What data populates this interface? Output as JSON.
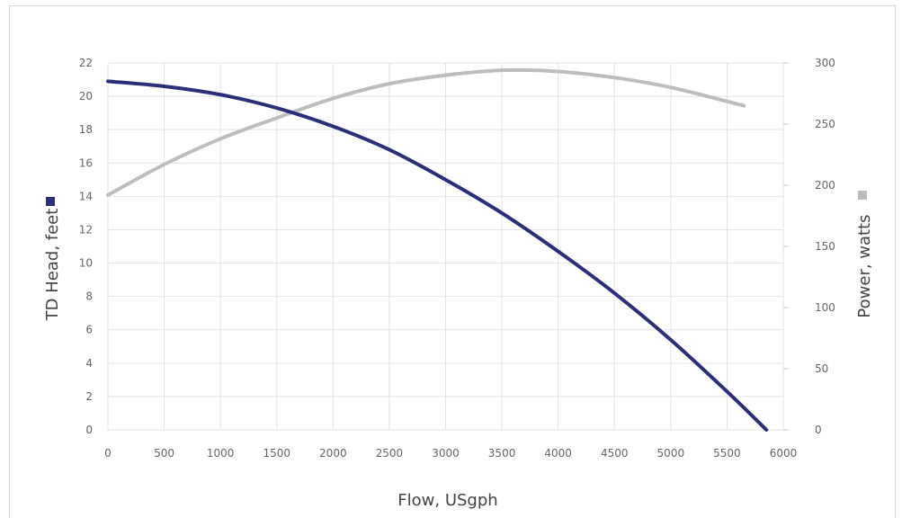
{
  "chart_data": {
    "type": "line",
    "xlabel": "Flow, USgph",
    "ylabel_left": "TD Head, feet",
    "ylabel_right": "Power, watts",
    "xlim": [
      0,
      6000
    ],
    "ylim_left": [
      0,
      22
    ],
    "ylim_right": [
      0,
      300
    ],
    "x_ticks": [
      0,
      500,
      1000,
      1500,
      2000,
      2500,
      3000,
      3500,
      4000,
      4500,
      5000,
      5500,
      6000
    ],
    "y_left_ticks": [
      0,
      2,
      4,
      6,
      8,
      10,
      12,
      14,
      16,
      18,
      20,
      22
    ],
    "y_right_ticks": [
      0,
      50,
      100,
      150,
      200,
      250,
      300
    ],
    "grid": true,
    "legend": "axis-title markers",
    "colors": {
      "head": "#2b2f7a",
      "power": "#bdbdbd",
      "grid": "#e3e3e3"
    },
    "series": [
      {
        "name": "TD Head, feet",
        "axis": "left",
        "x": [
          0,
          500,
          1000,
          1500,
          2000,
          2500,
          3000,
          3500,
          4000,
          4500,
          5000,
          5500,
          5850
        ],
        "y": [
          20.9,
          20.6,
          20.1,
          19.3,
          18.2,
          16.8,
          15.0,
          13.0,
          10.7,
          8.2,
          5.4,
          2.3,
          0
        ]
      },
      {
        "name": "Power, watts",
        "axis": "right",
        "x": [
          0,
          500,
          1000,
          1500,
          2000,
          2500,
          3000,
          3500,
          4000,
          4500,
          5000,
          5650
        ],
        "y": [
          192,
          217,
          238,
          255,
          271,
          283,
          290,
          294,
          293,
          288,
          280,
          265
        ]
      }
    ]
  }
}
